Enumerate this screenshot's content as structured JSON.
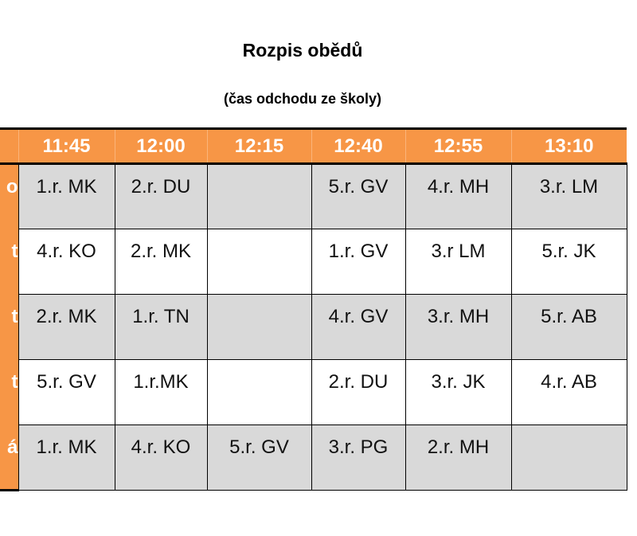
{
  "title": "Rozpis obědů",
  "subtitle": "(čas odchodu ze školy)",
  "times": [
    "11:45",
    "12:00",
    "12:15",
    "12:40",
    "12:55",
    "13:10"
  ],
  "rows": [
    {
      "day": "o",
      "cells": [
        "1.r. MK",
        "2.r. DU",
        "",
        "5.r. GV",
        "4.r. MH",
        "3.r. LM"
      ]
    },
    {
      "day": "t",
      "cells": [
        "4.r. KO",
        "2.r. MK",
        "",
        "1.r. GV",
        "3.r LM",
        "5.r. JK"
      ]
    },
    {
      "day": "t",
      "cells": [
        "2.r. MK",
        "1.r. TN",
        "",
        "4.r. GV",
        "3.r. MH",
        "5.r. AB"
      ]
    },
    {
      "day": "t",
      "cells": [
        "5.r. GV",
        "1.r.MK",
        "",
        "2.r. DU",
        "3.r. JK",
        "4.r. AB"
      ]
    },
    {
      "day": "á",
      "cells": [
        "1.r. MK",
        "4.r. KO",
        "5.r. GV",
        "3.r. PG",
        "2.r. MH",
        ""
      ]
    }
  ],
  "colors": {
    "header": "#f79646",
    "stripe": "#d9d9d9"
  }
}
